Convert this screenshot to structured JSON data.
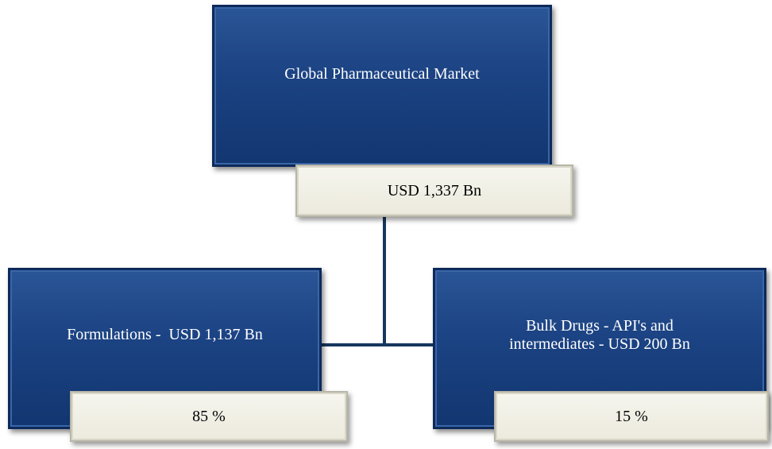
{
  "nodes": [
    {
      "label": "Global Pharmaceutical Market",
      "value_label": "USD 1,337 Bn"
    },
    {
      "label": "Formulations -  USD 1,137 Bn",
      "value_label": "85 %"
    },
    {
      "label_lines": [
        "Bulk Drugs - API's and",
        "intermediates - USD 200 Bn"
      ],
      "value_label": "15 %"
    }
  ]
}
